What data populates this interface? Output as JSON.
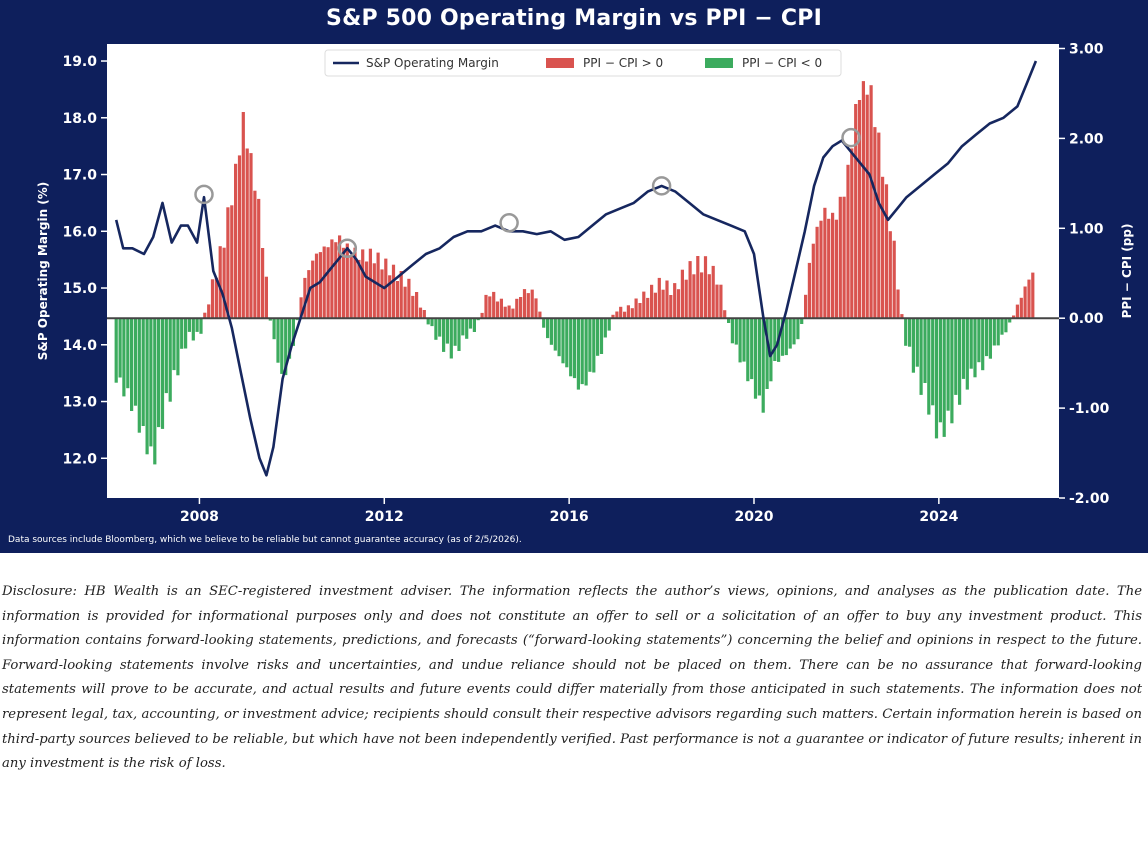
{
  "chart_data": {
    "type": "bar+line",
    "title": "S&P 500 Operating Margin vs PPI − CPI",
    "y_left_label": "S&P Operating Margin (%)",
    "y_right_label": "PPI − CPI (pp)",
    "y_left_range": [
      11.3,
      19.3
    ],
    "y_right_range": [
      -2.0,
      3.05
    ],
    "y_left_ticks": [
      "12.0",
      "13.0",
      "14.0",
      "15.0",
      "16.0",
      "17.0",
      "18.0",
      "19.0"
    ],
    "y_right_ticks": [
      "-2.00",
      "-1.00",
      "0.00",
      "1.00",
      "2.00",
      "3.00"
    ],
    "x_range": [
      2006.0,
      2026.6
    ],
    "x_ticks": [
      "2008",
      "2012",
      "2016",
      "2020",
      "2024"
    ],
    "legend": {
      "margin": "S&P Operating Margin",
      "positive": "PPI − CPI > 0",
      "negative": "PPI − CPI < 0"
    },
    "colors": {
      "line": "#16275f",
      "positive": "#d9534f",
      "negative": "#3cab5e",
      "background": "#0e1f5c",
      "zero_line": "#444444",
      "marker": "#999999"
    },
    "margin_series": {
      "x": [
        2006.2,
        2006.35,
        2006.55,
        2006.8,
        2007.0,
        2007.2,
        2007.4,
        2007.6,
        2007.75,
        2007.95,
        2008.1,
        2008.3,
        2008.5,
        2008.7,
        2008.9,
        2009.1,
        2009.3,
        2009.45,
        2009.6,
        2009.8,
        2010.0,
        2010.2,
        2010.4,
        2010.6,
        2010.8,
        2011.0,
        2011.2,
        2011.4,
        2011.6,
        2011.8,
        2012.0,
        2012.3,
        2012.6,
        2012.9,
        2013.2,
        2013.5,
        2013.8,
        2014.1,
        2014.4,
        2014.7,
        2015.0,
        2015.3,
        2015.6,
        2015.9,
        2016.2,
        2016.5,
        2016.8,
        2017.1,
        2017.4,
        2017.7,
        2018.0,
        2018.3,
        2018.6,
        2018.9,
        2019.2,
        2019.5,
        2019.8,
        2020.0,
        2020.2,
        2020.35,
        2020.5,
        2020.7,
        2020.9,
        2021.1,
        2021.3,
        2021.5,
        2021.7,
        2021.9,
        2022.1,
        2022.3,
        2022.5,
        2022.7,
        2022.9,
        2023.1,
        2023.3,
        2023.6,
        2023.9,
        2024.2,
        2024.5,
        2024.8,
        2025.1,
        2025.4,
        2025.7,
        2025.9,
        2026.1
      ],
      "y": [
        16.2,
        15.7,
        15.7,
        15.6,
        15.9,
        16.5,
        15.8,
        16.1,
        16.1,
        15.8,
        16.6,
        15.3,
        14.9,
        14.3,
        13.5,
        12.7,
        12.0,
        11.7,
        12.2,
        13.4,
        14.0,
        14.5,
        15.0,
        15.1,
        15.3,
        15.5,
        15.7,
        15.5,
        15.2,
        15.1,
        15.0,
        15.2,
        15.4,
        15.6,
        15.7,
        15.9,
        16.0,
        16.0,
        16.1,
        16.0,
        16.0,
        15.95,
        16.0,
        15.85,
        15.9,
        16.1,
        16.3,
        16.4,
        16.5,
        16.7,
        16.8,
        16.7,
        16.5,
        16.3,
        16.2,
        16.1,
        16.0,
        15.6,
        14.5,
        13.8,
        14.0,
        14.6,
        15.3,
        16.0,
        16.8,
        17.3,
        17.5,
        17.6,
        17.4,
        17.2,
        17.0,
        16.5,
        16.2,
        16.4,
        16.6,
        16.8,
        17.0,
        17.2,
        17.5,
        17.7,
        17.9,
        18.0,
        18.2,
        18.6,
        19.0
      ]
    },
    "ppi_cpi_series": {
      "x": [
        2006.0,
        2006.5,
        2007.0,
        2007.25,
        2007.5,
        2007.75,
        2008.0,
        2008.25,
        2008.5,
        2008.75,
        2008.95,
        2009.1,
        2009.3,
        2009.55,
        2009.8,
        2010.0,
        2010.25,
        2010.5,
        2010.75,
        2011.0,
        2011.25,
        2011.5,
        2011.75,
        2012.0,
        2012.25,
        2012.5,
        2012.75,
        2013.0,
        2013.25,
        2013.5,
        2013.75,
        2014.0,
        2014.25,
        2014.5,
        2014.75,
        2015.0,
        2015.25,
        2015.5,
        2015.75,
        2016.0,
        2016.25,
        2016.5,
        2016.75,
        2017.0,
        2017.25,
        2017.5,
        2017.75,
        2018.0,
        2018.25,
        2018.5,
        2018.75,
        2019.0,
        2019.25,
        2019.5,
        2019.75,
        2020.0,
        2020.2,
        2020.45,
        2020.7,
        2021.0,
        2021.25,
        2021.5,
        2021.75,
        2022.0,
        2022.25,
        2022.5,
        2022.75,
        2023.0,
        2023.25,
        2023.5,
        2023.75,
        2024.0,
        2024.25,
        2024.5,
        2024.75,
        2025.0,
        2025.25,
        2025.5,
        2025.75,
        2026.0
      ],
      "values": [
        -0.5,
        -0.9,
        -1.6,
        -1.0,
        -0.6,
        -0.2,
        -0.2,
        0.3,
        0.8,
        1.5,
        2.2,
        1.8,
        1.2,
        -0.1,
        -0.7,
        -0.4,
        0.4,
        0.7,
        0.8,
        0.9,
        0.75,
        0.7,
        0.7,
        0.6,
        0.5,
        0.4,
        0.2,
        -0.1,
        -0.3,
        -0.4,
        -0.2,
        -0.1,
        0.3,
        0.2,
        0.1,
        0.3,
        0.3,
        -0.2,
        -0.4,
        -0.6,
        -0.8,
        -0.6,
        -0.3,
        0.1,
        0.1,
        0.2,
        0.3,
        0.4,
        0.3,
        0.5,
        0.6,
        0.6,
        0.4,
        -0.2,
        -0.5,
        -0.8,
        -1.0,
        -0.5,
        -0.4,
        -0.2,
        0.8,
        1.2,
        1.1,
        1.5,
        2.5,
        2.6,
        1.8,
        0.9,
        -0.2,
        -0.6,
        -0.9,
        -1.3,
        -1.1,
        -0.8,
        -0.6,
        -0.5,
        -0.3,
        -0.1,
        0.2,
        0.5
      ]
    },
    "circled_peaks": [
      {
        "x": 2008.1,
        "y": 16.65
      },
      {
        "x": 2011.2,
        "y": 15.7
      },
      {
        "x": 2014.7,
        "y": 16.15
      },
      {
        "x": 2018.0,
        "y": 16.8
      },
      {
        "x": 2022.1,
        "y": 17.65
      }
    ]
  },
  "footer": {
    "source_note": "Data sources include Bloomberg, which we believe to be reliable but cannot guarantee accuracy (as of 2/5/2026).",
    "disclosure": "Disclosure: HB Wealth is an SEC-registered investment adviser. The information reflects the author’s views, opinions, and analyses as the publication date. The information is provided for informational purposes only and does not constitute an offer to sell or a solicitation of an offer to buy any investment product. This information contains forward-looking statements, predictions, and forecasts (“forward-looking statements”) concerning the belief and opinions in respect to the future. Forward-looking statements involve risks and uncertainties, and undue reliance should not be placed on them. There can be no assurance that forward-looking statements will prove to be accurate, and actual results and future events could differ materially from those anticipated in such statements. The information does not represent legal, tax, accounting, or investment advice; recipients should consult their respective advisors regarding such matters. Certain information herein is based on third-party sources believed to be reliable, but which have not been independently verified. Past performance is not a guarantee or indicator of future results; inherent in any investment is the risk of loss."
  }
}
